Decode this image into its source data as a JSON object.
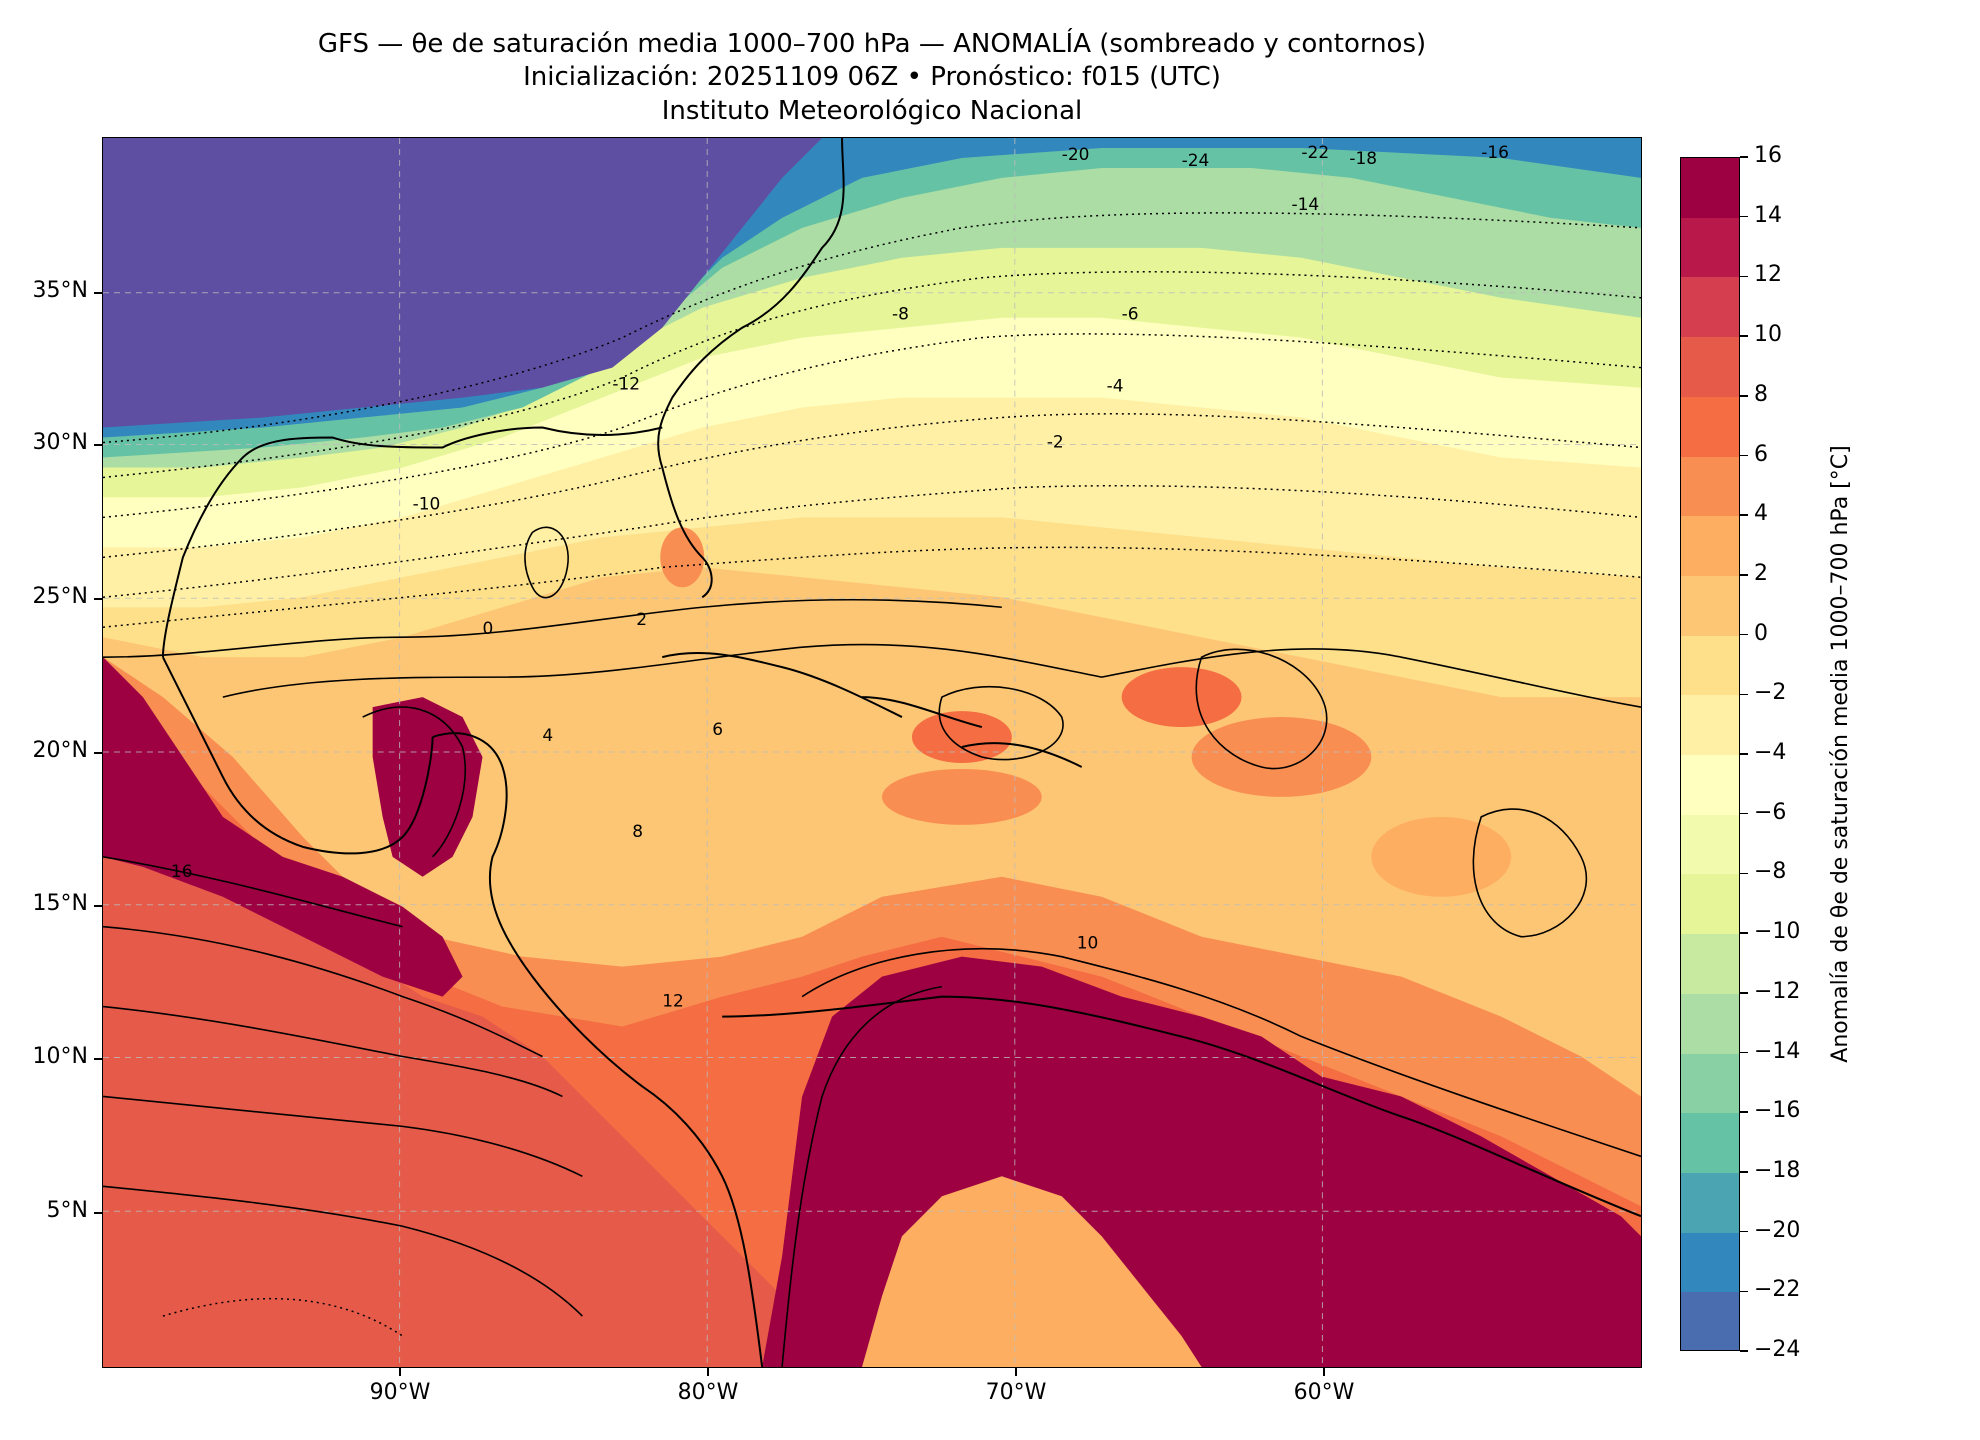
{
  "header": {
    "title_line1": "GFS — θe de saturación media 1000–700 hPa — ANOMALÍA (sombreado y contornos)",
    "title_line2": "Inicialización: 20251109 06Z   •   Pronóstico: f015 (UTC)",
    "title_line3": "Instituto Meteorológico Nacional"
  },
  "map": {
    "lat_labels": [
      "35°N",
      "30°N",
      "25°N",
      "20°N",
      "15°N",
      "10°N",
      "5°N"
    ],
    "lon_labels": [
      "90°W",
      "80°W",
      "70°W",
      "60°W"
    ],
    "gridlines": "dashed",
    "contour_labels": [
      "-24",
      "-22",
      "-20",
      "-18",
      "-16",
      "-14",
      "-12",
      "-10",
      "-8",
      "-6",
      "-4",
      "-2",
      "0",
      "2",
      "4",
      "6",
      "8",
      "10",
      "12",
      "16"
    ]
  },
  "colorbar": {
    "label": "Anomalía de θe de saturación media 1000–700 hPa [°C]",
    "tick_labels": [
      "16",
      "14",
      "12",
      "10",
      "8",
      "6",
      "4",
      "2",
      "0",
      "−2",
      "−4",
      "−6",
      "−8",
      "−10",
      "−12",
      "−14",
      "−16",
      "−18",
      "−20",
      "−22",
      "−24"
    ],
    "colors": [
      "#9e0142",
      "#b8194a",
      "#d53e4f",
      "#e55a49",
      "#f46d43",
      "#f98e52",
      "#fdae61",
      "#fdc674",
      "#fee08b",
      "#fff0a6",
      "#ffffbf",
      "#f2faae",
      "#e6f598",
      "#c7e9a0",
      "#abdda4",
      "#89d0a4",
      "#66c2a5",
      "#4ba4b1",
      "#3288bd",
      "#4a6db0",
      "#5e4fa2"
    ]
  }
}
